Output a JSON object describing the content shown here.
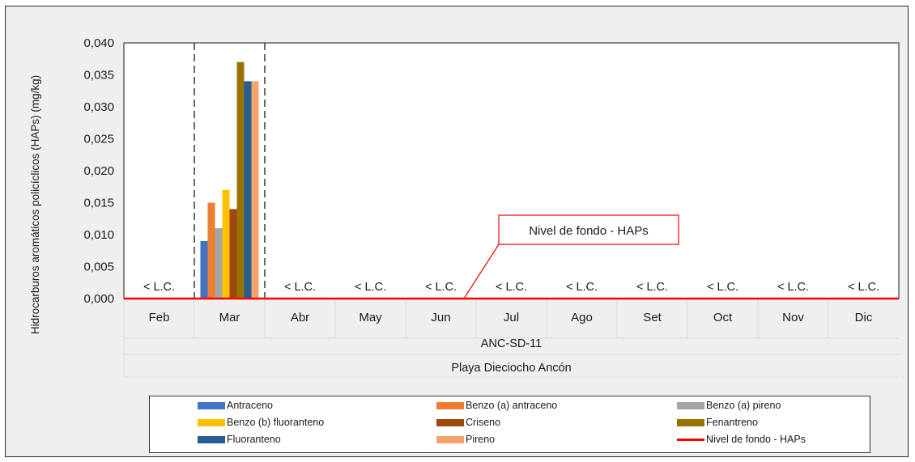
{
  "chart_data": {
    "type": "bar",
    "ylabel": "Hidrocarburos aromáticos policíclicos (HAPs) (mg/kg)",
    "xlabel_station": "ANC-SD-11",
    "xlabel_site": "Playa Dieciocho Ancón",
    "ylim": [
      0,
      0.04
    ],
    "yticks": [
      "0,000",
      "0,005",
      "0,010",
      "0,015",
      "0,020",
      "0,025",
      "0,030",
      "0,035",
      "0,040"
    ],
    "categories": [
      "Feb",
      "Mar",
      "Abr",
      "May",
      "Jun",
      "Jul",
      "Ago",
      "Set",
      "Oct",
      "Nov",
      "Dic"
    ],
    "below_limit_label": "< L.C.",
    "below_limit_categories": [
      "Feb",
      "Abr",
      "May",
      "Jun",
      "Jul",
      "Ago",
      "Set",
      "Oct",
      "Nov",
      "Dic"
    ],
    "highlighted_category": "Mar",
    "series": [
      {
        "name": "Antraceno",
        "color": "#4472c4",
        "values": [
          null,
          0.009,
          null,
          null,
          null,
          null,
          null,
          null,
          null,
          null,
          null
        ]
      },
      {
        "name": "Benzo (a) antraceno",
        "color": "#ed7d31",
        "values": [
          null,
          0.015,
          null,
          null,
          null,
          null,
          null,
          null,
          null,
          null,
          null
        ]
      },
      {
        "name": "Benzo (a) pireno",
        "color": "#a5a5a5",
        "values": [
          null,
          0.011,
          null,
          null,
          null,
          null,
          null,
          null,
          null,
          null,
          null
        ]
      },
      {
        "name": "Benzo (b) fluoranteno",
        "color": "#ffc000",
        "values": [
          null,
          0.017,
          null,
          null,
          null,
          null,
          null,
          null,
          null,
          null,
          null
        ]
      },
      {
        "name": "Criseno",
        "color": "#9e480e",
        "values": [
          null,
          0.014,
          null,
          null,
          null,
          null,
          null,
          null,
          null,
          null,
          null
        ]
      },
      {
        "name": "Fenantreno",
        "color": "#997300",
        "values": [
          null,
          0.037,
          null,
          null,
          null,
          null,
          null,
          null,
          null,
          null,
          null
        ]
      },
      {
        "name": "Fluoranteno",
        "color": "#255e91",
        "values": [
          null,
          0.034,
          null,
          null,
          null,
          null,
          null,
          null,
          null,
          null,
          null
        ]
      },
      {
        "name": "Pireno",
        "color": "#f4a46a",
        "values": [
          null,
          0.034,
          null,
          null,
          null,
          null,
          null,
          null,
          null,
          null,
          null
        ]
      }
    ],
    "reference_line": {
      "name": "Nivel de fondo - HAPs",
      "value": 0,
      "color": "#ff0000"
    },
    "annotation": "Nivel de fondo - HAPs",
    "legend_position": "bottom"
  }
}
